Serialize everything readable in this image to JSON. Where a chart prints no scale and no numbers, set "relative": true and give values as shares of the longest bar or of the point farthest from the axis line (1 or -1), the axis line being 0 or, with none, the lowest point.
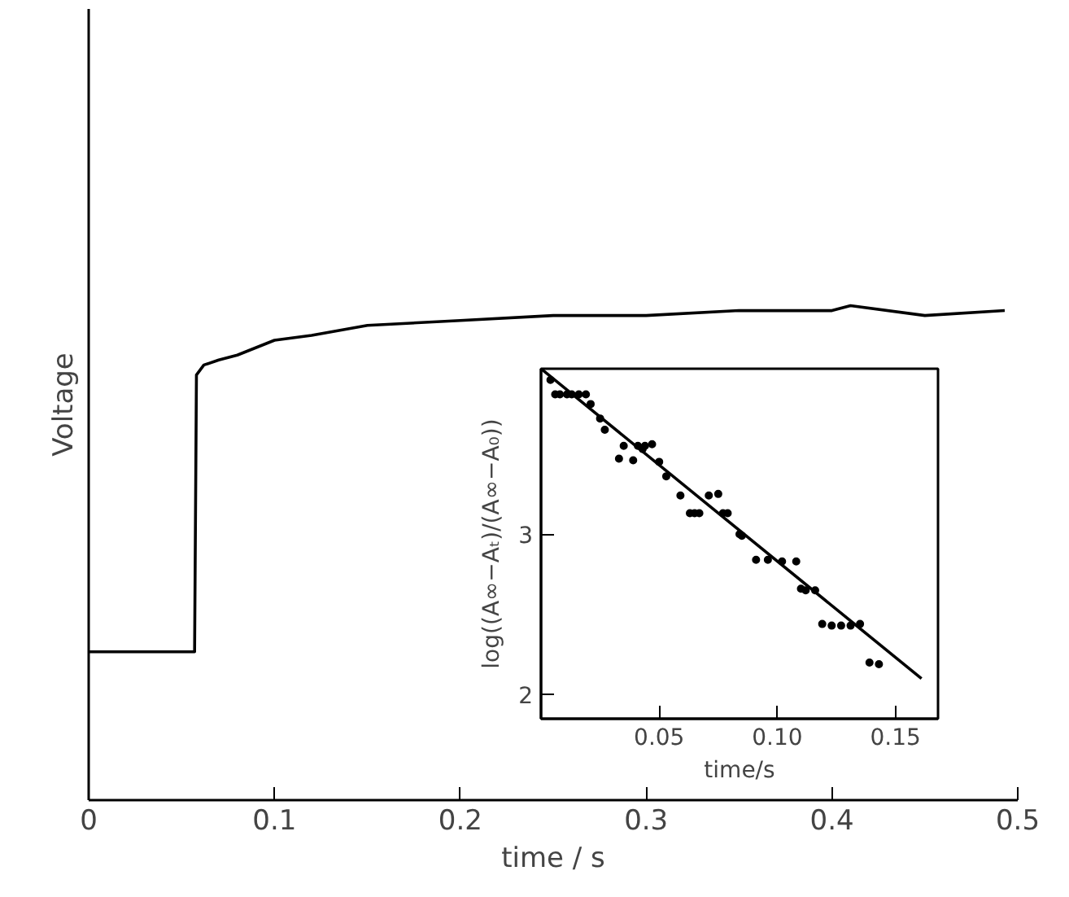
{
  "chart_data": [
    {
      "type": "line",
      "relative": true,
      "xlabel": "time / s",
      "ylabel": "Voltage",
      "xlim": [
        0,
        0.5
      ],
      "xticks": [
        0,
        0.1,
        0.2,
        0.3,
        0.4,
        0.5
      ],
      "x": [
        0,
        0.02,
        0.04,
        0.057,
        0.058,
        0.062,
        0.07,
        0.08,
        0.1,
        0.12,
        0.15,
        0.2,
        0.25,
        0.3,
        0.35,
        0.4,
        0.41,
        0.45,
        0.493
      ],
      "series": [
        {
          "color": "#000000",
          "values": [
            0.3,
            0.3,
            0.3,
            0.3,
            0.86,
            0.88,
            0.89,
            0.9,
            0.93,
            0.94,
            0.96,
            0.97,
            0.98,
            0.98,
            0.99,
            0.99,
            1.0,
            0.98,
            0.99
          ]
        }
      ]
    },
    {
      "type": "scatter",
      "xlabel": "time/s",
      "ylabel": "log((A∞−Aₜ)/(A∞−A₀))",
      "xlim": [
        0,
        0.168
      ],
      "ylim": [
        1.85,
        4.03
      ],
      "xticks": [
        0.05,
        {
          "value": 0.1,
          "label": "0.10"
        },
        0.15
      ],
      "yticks": [
        2,
        3
      ],
      "series": [
        {
          "type": "scatter",
          "marker": "circle",
          "color": "#000000",
          "x": [
            0.004,
            0.006,
            0.008,
            0.011,
            0.013,
            0.016,
            0.019,
            0.021,
            0.025,
            0.027,
            0.033,
            0.035,
            0.039,
            0.041,
            0.043,
            0.044,
            0.047,
            0.05,
            0.053,
            0.059,
            0.063,
            0.065,
            0.067,
            0.071,
            0.075,
            0.077,
            0.079,
            0.084,
            0.085,
            0.091,
            0.096,
            0.102,
            0.108,
            0.11,
            0.112,
            0.116,
            0.119,
            0.123,
            0.127,
            0.131,
            0.135,
            0.139,
            0.143
          ],
          "values": [
            3.96,
            3.87,
            3.87,
            3.87,
            3.87,
            3.87,
            3.87,
            3.81,
            3.72,
            3.65,
            3.47,
            3.55,
            3.46,
            3.55,
            3.53,
            3.55,
            3.56,
            3.45,
            3.36,
            3.24,
            3.13,
            3.13,
            3.13,
            3.24,
            3.25,
            3.13,
            3.13,
            3.0,
            2.99,
            2.84,
            2.84,
            2.83,
            2.83,
            2.66,
            2.65,
            2.65,
            2.44,
            2.43,
            2.43,
            2.43,
            2.44,
            2.2,
            2.19
          ]
        },
        {
          "type": "line",
          "color": "#000000",
          "x": [
            0,
            0.161
          ],
          "values": [
            4.03,
            2.1
          ]
        }
      ]
    }
  ]
}
